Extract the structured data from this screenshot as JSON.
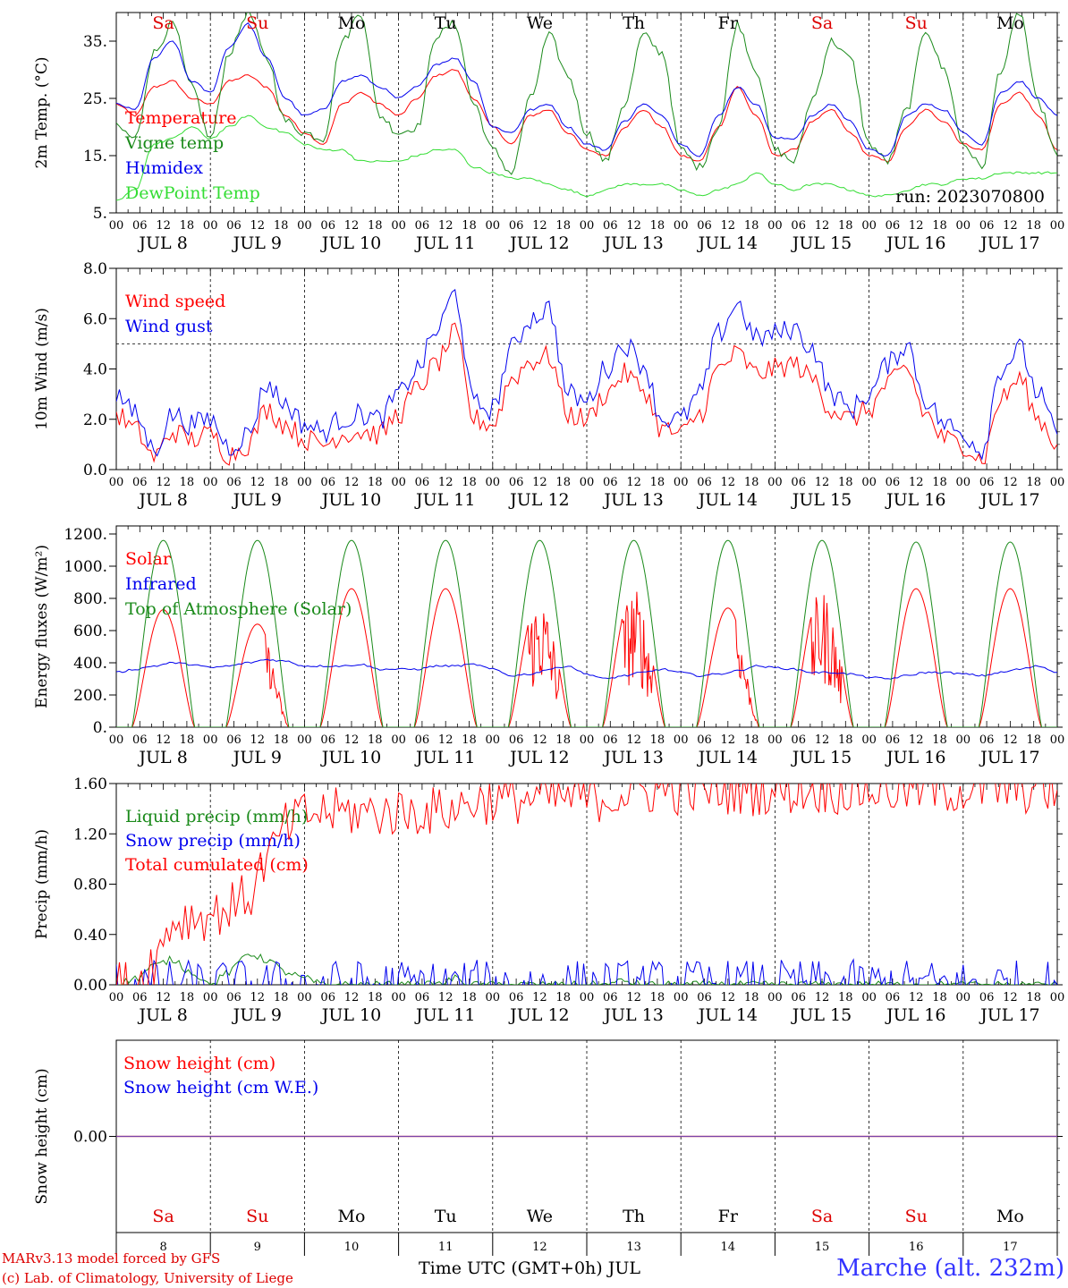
{
  "chart_data": {
    "type": "line",
    "run_label": "run: 2023070800",
    "days": [
      "JUL 8",
      "JUL 9",
      "JUL 10",
      "JUL 11",
      "JUL 12",
      "JUL 13",
      "JUL 14",
      "JUL 15",
      "JUL 16",
      "JUL 17"
    ],
    "hour_ticks": [
      "00",
      "06",
      "12",
      "18"
    ],
    "last_tick": "00",
    "weekdays": [
      {
        "label": "Sa",
        "color": "#dd0000"
      },
      {
        "label": "Su",
        "color": "#dd0000"
      },
      {
        "label": "Mo",
        "color": "#000000"
      },
      {
        "label": "Tu",
        "color": "#000000"
      },
      {
        "label": "We",
        "color": "#000000"
      },
      {
        "label": "Th",
        "color": "#000000"
      },
      {
        "label": "Fr",
        "color": "#000000"
      },
      {
        "label": "Sa",
        "color": "#dd0000"
      },
      {
        "label": "Su",
        "color": "#dd0000"
      },
      {
        "label": "Mo",
        "color": "#000000"
      }
    ],
    "day_numbers": [
      "8",
      "9",
      "10",
      "11",
      "12",
      "13",
      "14",
      "15",
      "16",
      "17"
    ],
    "xlabel": "Time UTC (GMT+0h) JUL",
    "station": "Marche (alt. 232m)",
    "credits": [
      "MARv3.13 model forced by GFS",
      "(c) Lab. of Climatology, University of Liege"
    ],
    "panels": [
      {
        "ylabel": "2m Temp. (°C)",
        "ylim": [
          5,
          40
        ],
        "yticks": [
          5,
          15,
          25,
          35
        ],
        "ytick_labels": [
          "5.",
          "15.",
          "25.",
          "35."
        ],
        "series": [
          {
            "name": "Temperature",
            "color": "#ff0000",
            "values": [
              24,
              22,
              27,
              28,
              25,
              24,
              28,
              29,
              27,
              22,
              19,
              17,
              24,
              26,
              24,
              22,
              25,
              29,
              30,
              25,
              20,
              17,
              22,
              23,
              19,
              16,
              15,
              20,
              23,
              20,
              15,
              14,
              20,
              27,
              22,
              15,
              16,
              21,
              23,
              19,
              15,
              14,
              20,
              23,
              21,
              17,
              16,
              24,
              26,
              22,
              16
            ]
          },
          {
            "name": "Vigne temp",
            "color": "#1a8a1a",
            "values": [
              20,
              18,
              33,
              38,
              27,
              18,
              33,
              40,
              32,
              21,
              19,
              18,
              35,
              40,
              22,
              19,
              20,
              36,
              38,
              24,
              16,
              12,
              25,
              36,
              29,
              19,
              14,
              24,
              36,
              33,
              16,
              13,
              20,
              38,
              30,
              16,
              14,
              25,
              35,
              32,
              17,
              14,
              23,
              37,
              30,
              17,
              13,
              30,
              40,
              24,
              15
            ]
          },
          {
            "name": "Humidex",
            "color": "#0000ee",
            "values": [
              24,
              23,
              32,
              35,
              28,
              26,
              34,
              38,
              32,
              25,
              22,
              23,
              28,
              29,
              27,
              25,
              27,
              31,
              32,
              28,
              20,
              19,
              23,
              24,
              20,
              17,
              16,
              21,
              24,
              22,
              17,
              15,
              22,
              27,
              24,
              18,
              18,
              22,
              24,
              21,
              16,
              15,
              22,
              24,
              23,
              19,
              17,
              26,
              28,
              25,
              22
            ]
          },
          {
            "name": "DewPoint Temp",
            "color": "#33dd33",
            "values": [
              7,
              9,
              17,
              18,
              20,
              18,
              20,
              22,
              20,
              19,
              17,
              16,
              16,
              14,
              14,
              14,
              15,
              16,
              16,
              13,
              12,
              11,
              11,
              10,
              9,
              8,
              9,
              10,
              10,
              10,
              9,
              8,
              9,
              10,
              12,
              10,
              9,
              10,
              10,
              9,
              8,
              8,
              9,
              10,
              10,
              11,
              11,
              12,
              12,
              12,
              12
            ]
          }
        ]
      },
      {
        "ylabel": "10m Wind (m/s)",
        "ylim": [
          0,
          8
        ],
        "yticks": [
          0,
          2,
          4,
          6,
          8
        ],
        "ytick_labels": [
          "0.0",
          "2.0",
          "4.0",
          "6.0",
          "8.0"
        ],
        "reference_line": 5,
        "series": [
          {
            "name": "Wind speed",
            "color": "#ff0000",
            "values": [
              2.2,
              1.6,
              0.5,
              1.5,
              1.2,
              1.4,
              0.6,
              1.0,
              2.4,
              1.8,
              1.2,
              1.0,
              1.4,
              1.5,
              1.4,
              2.2,
              3.2,
              4.2,
              5.4,
              2.0,
              1.8,
              3.6,
              4.3,
              4.5,
              2.2,
              2.0,
              3.0,
              3.8,
              3.2,
              1.6,
              1.4,
              2.2,
              4.0,
              4.6,
              3.8,
              4.0,
              4.2,
              3.6,
              2.4,
              2.0,
              2.4,
              3.4,
              4.0,
              2.2,
              1.2,
              1.0,
              0.4,
              2.8,
              3.6,
              2.0,
              1.0
            ]
          },
          {
            "name": "Wind gust",
            "color": "#0000ee",
            "values": [
              3.0,
              2.2,
              0.8,
              2.2,
              1.8,
              2.0,
              0.9,
              1.4,
              3.4,
              2.6,
              1.8,
              1.5,
              2.0,
              2.2,
              2.0,
              3.0,
              4.0,
              5.5,
              7.0,
              2.6,
              2.4,
              4.8,
              6.0,
              6.4,
              3.0,
              2.7,
              4.0,
              5.0,
              4.2,
              2.0,
              2.0,
              3.0,
              5.4,
              6.6,
              5.2,
              5.4,
              5.6,
              4.8,
              3.0,
              2.4,
              3.0,
              4.2,
              5.0,
              2.8,
              1.8,
              1.4,
              0.8,
              4.0,
              4.8,
              3.0,
              1.4
            ]
          }
        ]
      },
      {
        "ylabel": "Energy fluxes (W/m²)",
        "ylim": [
          0,
          1250
        ],
        "yticks": [
          0,
          200,
          400,
          600,
          800,
          1000,
          1200
        ],
        "ytick_labels": [
          "0.",
          "200.",
          "400.",
          "600.",
          "800.",
          "1000.",
          "1200."
        ],
        "series": [
          {
            "name": "Solar",
            "color": "#ff0000",
            "daily_peaks": [
              730,
              640,
              860,
              860,
              820,
              870,
              740,
              860,
              860,
              860
            ]
          },
          {
            "name": "Infrared",
            "color": "#0000ee",
            "values": [
              340,
              360,
              380,
              400,
              390,
              370,
              380,
              400,
              420,
              410,
              380,
              380,
              380,
              390,
              360,
              360,
              360,
              380,
              380,
              390,
              360,
              320,
              330,
              360,
              380,
              330,
              300,
              320,
              340,
              360,
              340,
              320,
              330,
              350,
              380,
              370,
              360,
              340,
              340,
              330,
              310,
              300,
              320,
              340,
              340,
              330,
              320,
              340,
              360,
              380,
              340
            ]
          },
          {
            "name": "Top of Atmosphere (Solar)",
            "color": "#1a8a1a",
            "daily_peaks": [
              1160,
              1160,
              1160,
              1160,
              1160,
              1160,
              1160,
              1160,
              1150,
              1150
            ]
          }
        ]
      },
      {
        "ylabel": "Precip (mm/h)",
        "ylim": [
          0,
          1.6
        ],
        "yticks": [
          0,
          0.4,
          0.8,
          1.2,
          1.6
        ],
        "ytick_labels": [
          "0.00",
          "0.40",
          "0.80",
          "1.20",
          "1.60"
        ],
        "series": [
          {
            "name": "Liquid precip (mm/h)",
            "color": "#1a8a1a",
            "values": [
              0,
              0.05,
              0.15,
              0.2,
              0.1,
              0,
              0.1,
              0.25,
              0.2,
              0.1,
              0.05,
              0,
              0,
              0,
              0,
              0,
              0,
              0,
              0.05,
              0,
              0,
              0,
              0,
              0,
              0,
              0,
              0,
              0.03,
              0,
              0,
              0,
              0,
              0,
              0,
              0,
              0,
              0,
              0,
              0,
              0,
              0,
              0,
              0,
              0,
              0,
              0,
              0,
              0,
              0,
              0,
              0
            ]
          },
          {
            "name": "Snow precip (mm/h)",
            "color": "#0000ee",
            "values": [
              0,
              0,
              0,
              0,
              0,
              0,
              0,
              0,
              0,
              0,
              0,
              0,
              0,
              0,
              0,
              0,
              0,
              0,
              0,
              0,
              0,
              0,
              0,
              0,
              0,
              0,
              0,
              0,
              0,
              0,
              0,
              0,
              0,
              0,
              0,
              0,
              0,
              0,
              0,
              0,
              0,
              0,
              0,
              0,
              0,
              0,
              0,
              0,
              0,
              0,
              0
            ]
          },
          {
            "name": "Total cumulated (cm)",
            "color": "#ff0000",
            "values": [
              0,
              0.02,
              0.2,
              0.5,
              0.54,
              0.55,
              0.62,
              0.7,
              1.0,
              1.25,
              1.35,
              1.37,
              1.37,
              1.37,
              1.37,
              1.37,
              1.38,
              1.38,
              1.4,
              1.46,
              1.47,
              1.47,
              1.48,
              1.48,
              1.48,
              1.48,
              1.49,
              1.52,
              1.54,
              1.54,
              1.54,
              1.54,
              1.54,
              1.54,
              1.54,
              1.54,
              1.55,
              1.55,
              1.55,
              1.55,
              1.55,
              1.55,
              1.55,
              1.55,
              1.55,
              1.55,
              1.55,
              1.55,
              1.55,
              1.55,
              1.55
            ]
          }
        ]
      },
      {
        "ylabel": "Snow height (cm)",
        "ylim": [
          -1,
          1
        ],
        "yticks": [
          0
        ],
        "ytick_labels": [
          "0.00"
        ],
        "series": [
          {
            "name": "Snow height (cm)",
            "color": "#ff0000",
            "values": [
              0,
              0
            ]
          },
          {
            "name": "Snow height (cm W.E.)",
            "color": "#0000ee",
            "values": [
              0,
              0
            ]
          }
        ]
      }
    ]
  }
}
